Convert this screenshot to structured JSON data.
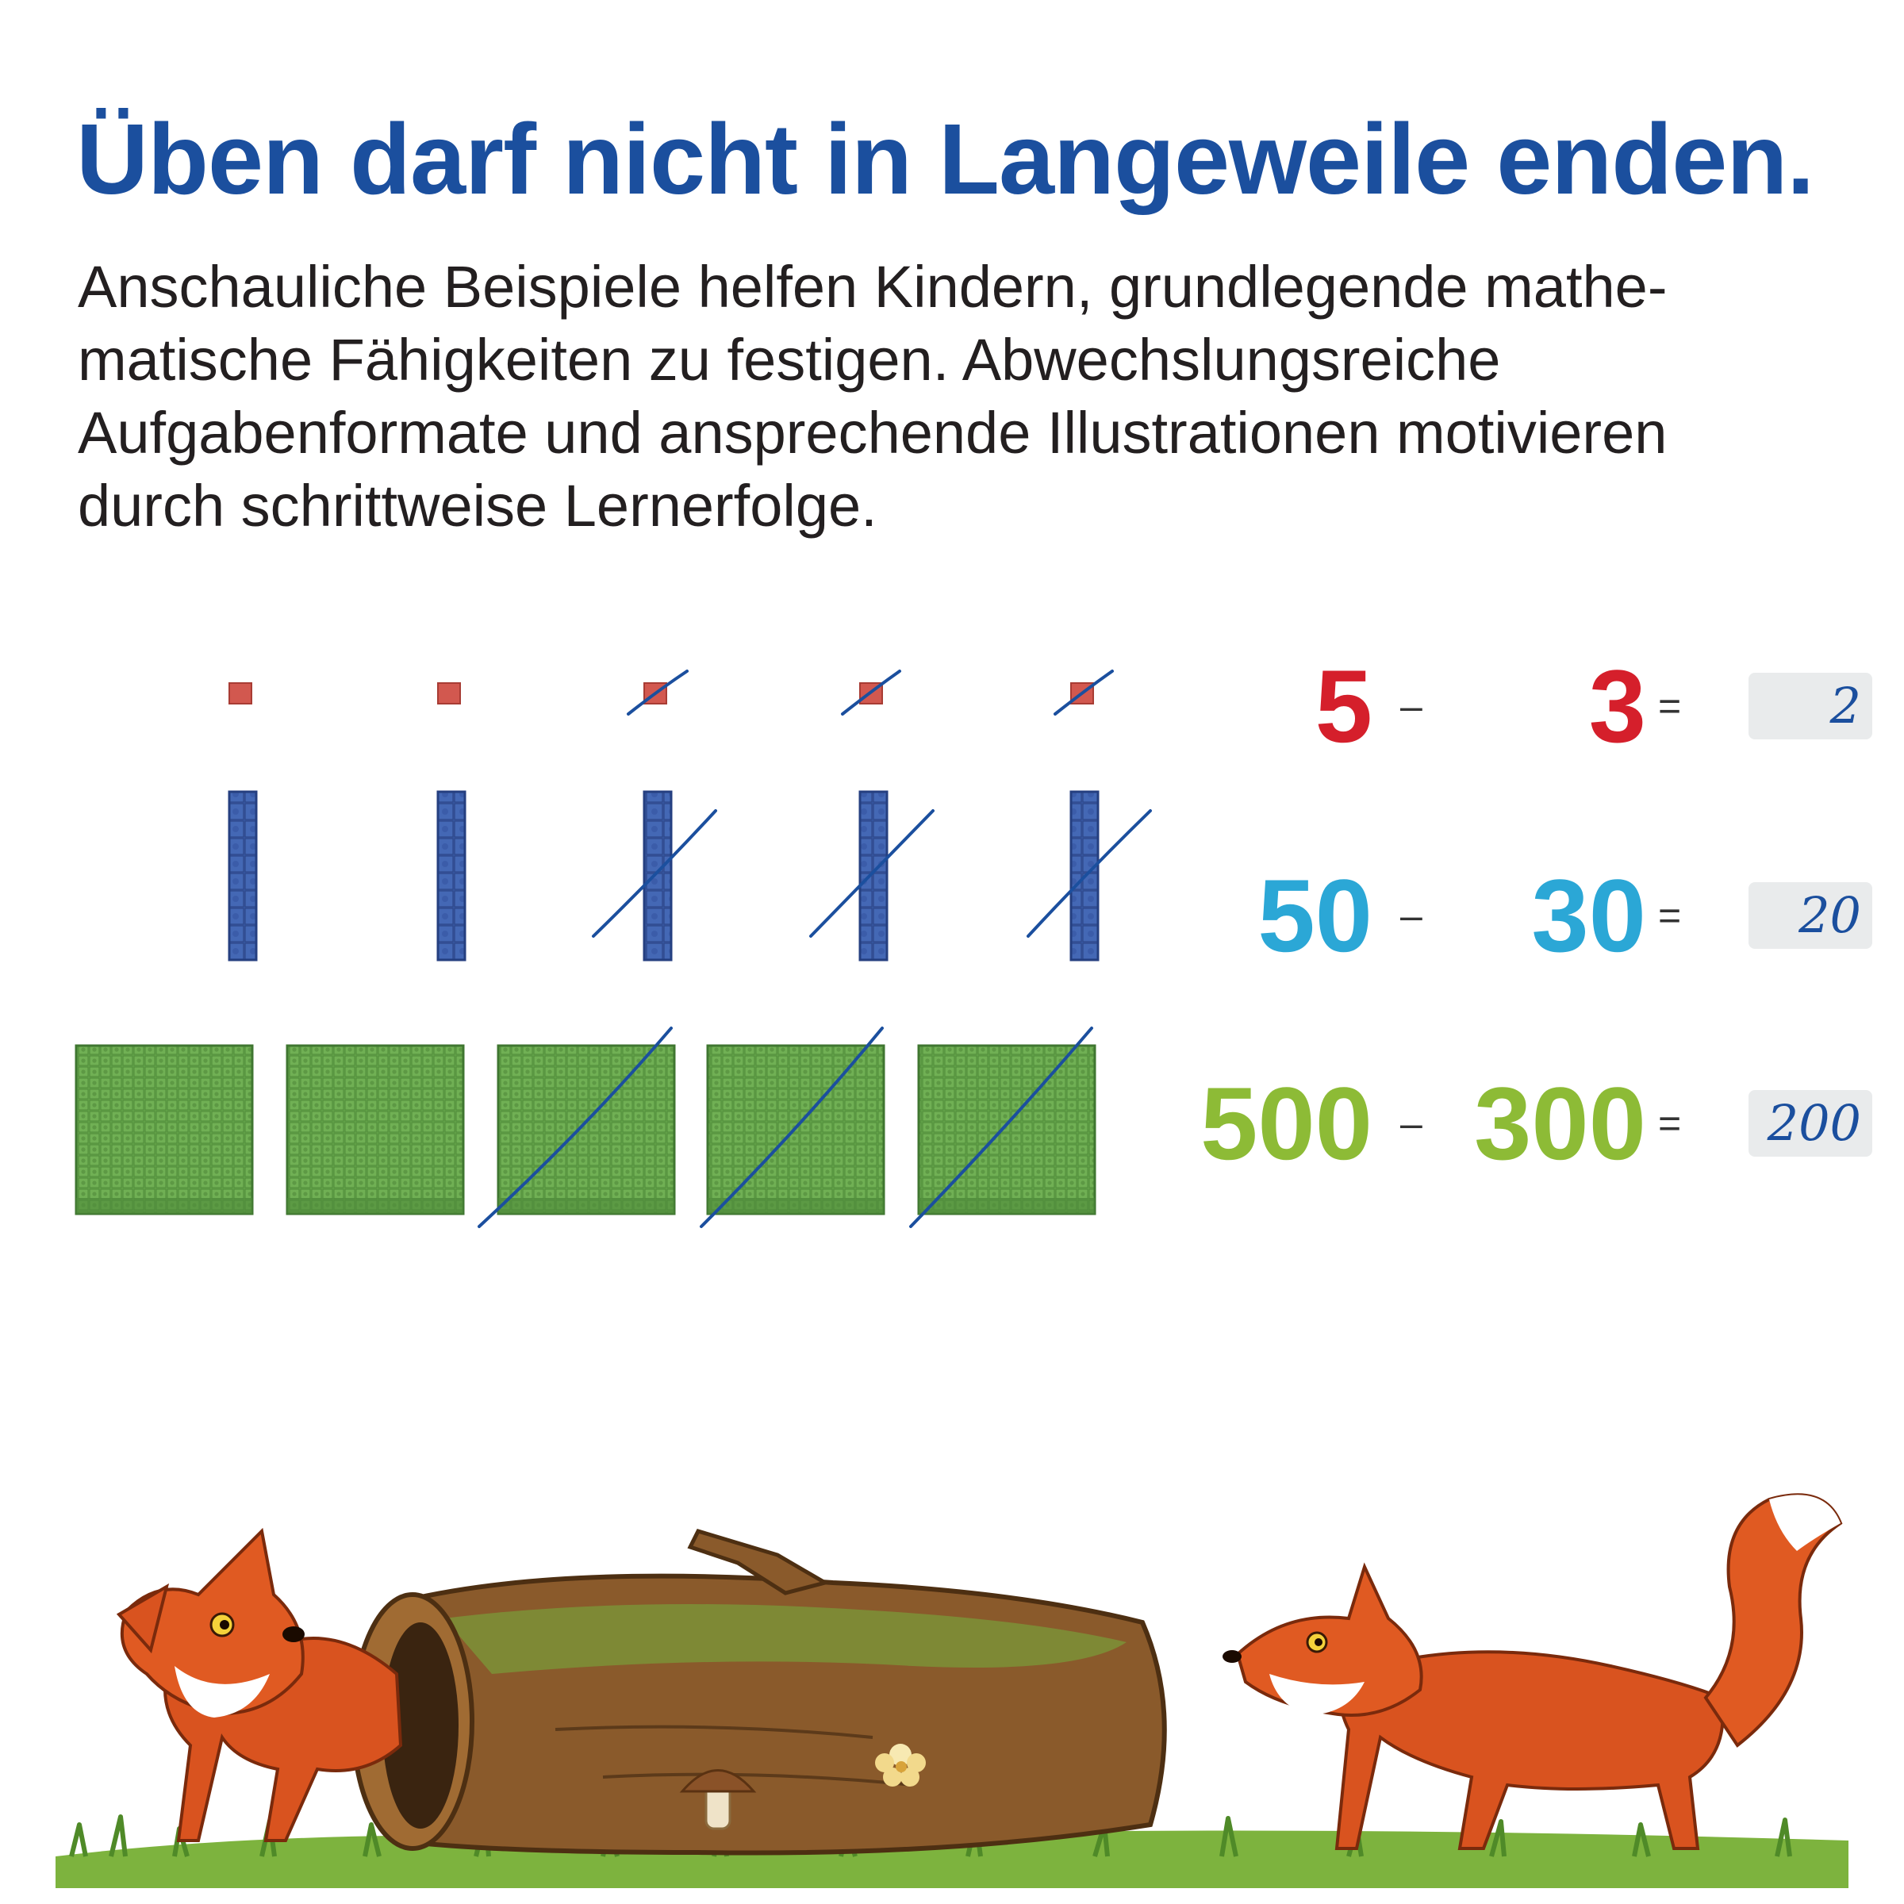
{
  "headline": "Üben darf nicht in Langeweile enden.",
  "intro_lines": [
    "Anschauliche Beispiele helfen Kindern, grundlegende mathe-",
    "matische Fähigkeiten zu festigen. Abwechslungsreiche",
    "Aufgabenformate und ansprechende Illustrationen motivieren",
    "durch schrittweise Lernerfolge."
  ],
  "equations": [
    {
      "a": "5",
      "op": "–",
      "b": "3",
      "eq": "=",
      "result": "2",
      "color": "#d51f2b"
    },
    {
      "a": "50",
      "op": "–",
      "b": "30",
      "eq": "=",
      "result": "20",
      "color": "#2ba7d6"
    },
    {
      "a": "500",
      "op": "–",
      "b": "300",
      "eq": "=",
      "result": "200",
      "color": "#8dbb36"
    }
  ],
  "blocks": {
    "columns": 5,
    "crossed_out": 3,
    "cube_color": "#d2584f",
    "rod_color": "#3a5ba8",
    "flat_color": "#66a64b",
    "stroke_color": "#1b4f9e"
  },
  "illustration": [
    "fox-left",
    "hollow-log",
    "mushroom",
    "flower",
    "fox-right",
    "grass"
  ]
}
